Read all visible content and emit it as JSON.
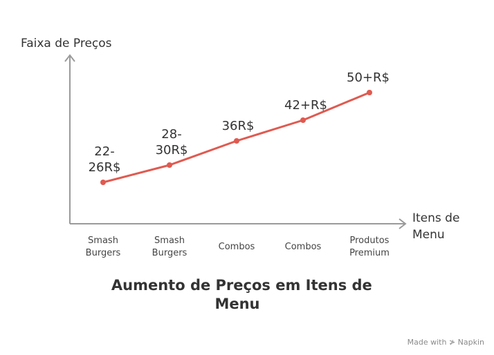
{
  "chart_data": {
    "type": "line",
    "title_lines": [
      "Aumento de Preços em Itens de",
      "Menu"
    ],
    "ylabel": "Faixa de Preços",
    "xlabel_lines": [
      "Itens de",
      "Menu"
    ],
    "categories": [
      [
        "Smash",
        "Burgers"
      ],
      [
        "Smash",
        "Burgers"
      ],
      [
        "Combos"
      ],
      [
        "Combos"
      ],
      [
        "Produtos",
        "Premium"
      ]
    ],
    "values": [
      24,
      29,
      36,
      42,
      50
    ],
    "data_labels": [
      [
        "22-",
        "26R$"
      ],
      [
        "28-",
        "30R$"
      ],
      [
        "36R$"
      ],
      [
        "42+R$"
      ],
      [
        "50+R$"
      ]
    ],
    "ylim": [
      12,
      58
    ],
    "line_color": "#e05a50",
    "axis_color": "#9a9a9a",
    "grid": false
  },
  "footer": {
    "credit": "Made with ≯ Napkin"
  }
}
